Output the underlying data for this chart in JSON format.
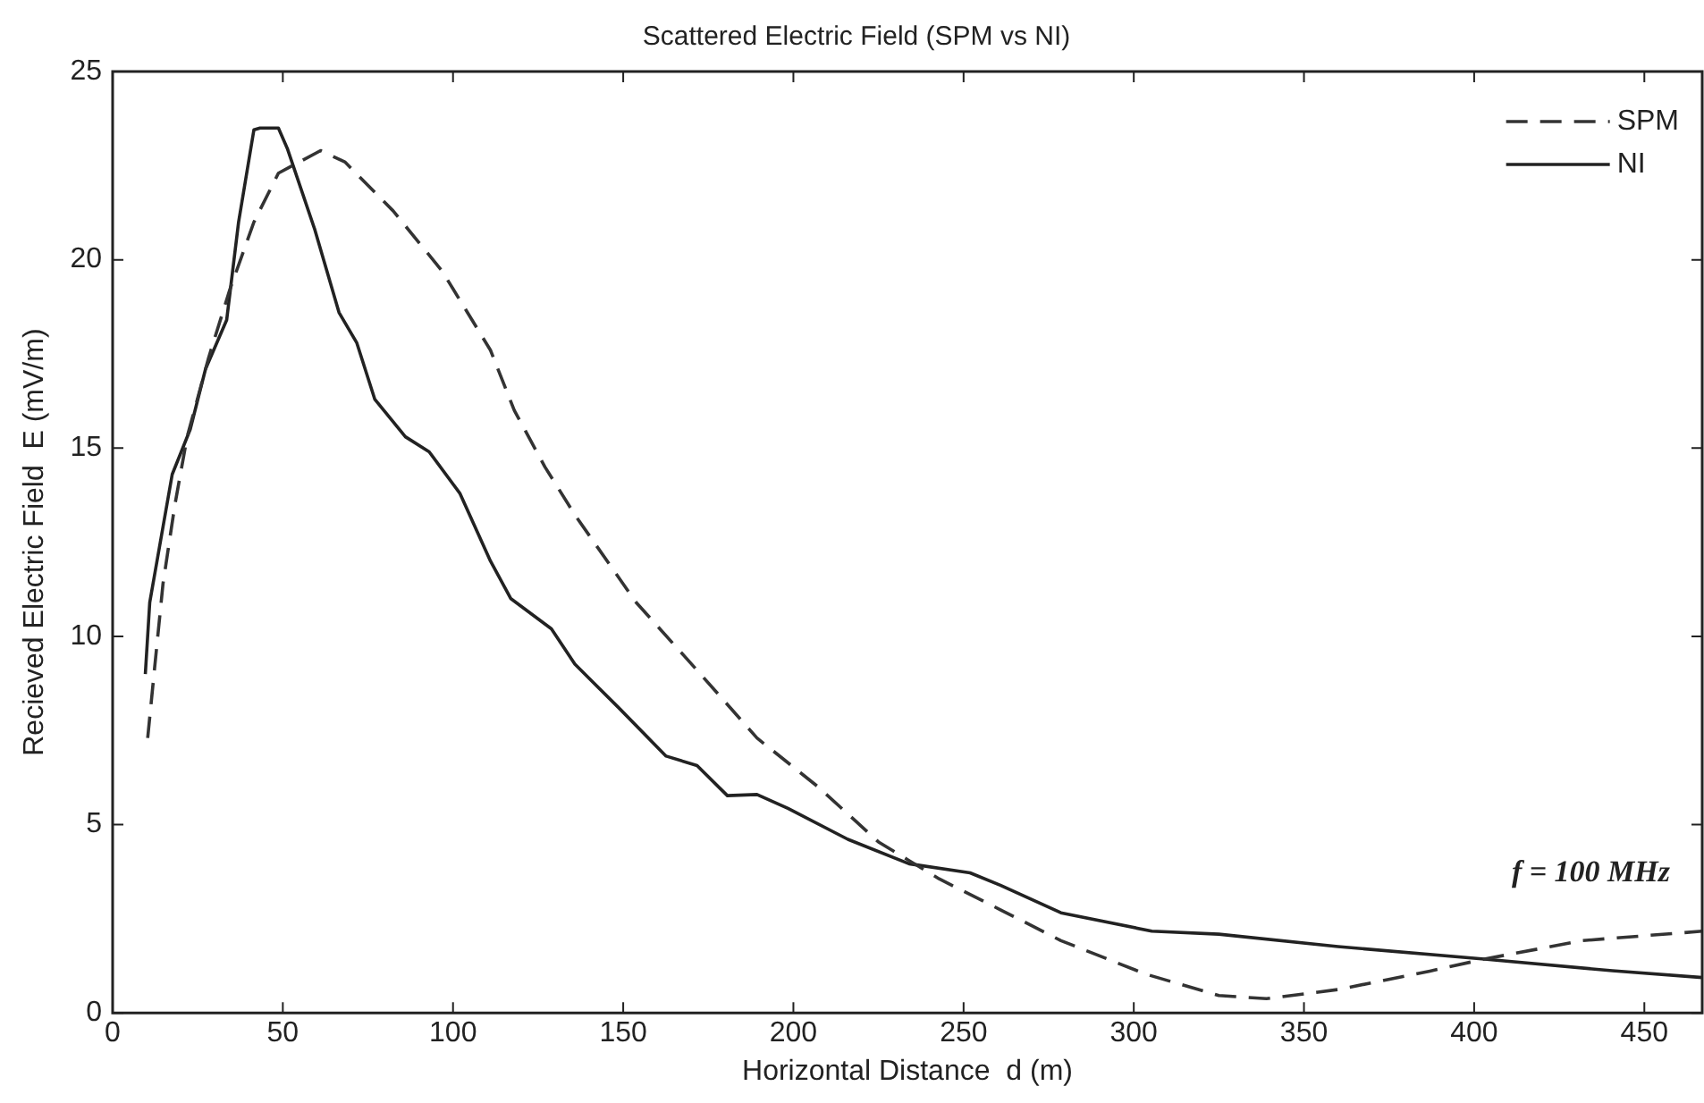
{
  "chart_data": {
    "type": "line",
    "title": "Scattered Electric Field (SPM vs NI)",
    "xlabel": "Horizontal Distance  d (m)",
    "ylabel": "Recieved Electric Field  E (mV/m)",
    "annotations": [
      "f = 100 MHz"
    ],
    "xlim": [
      0,
      467
    ],
    "xticks": [
      0,
      50,
      100,
      150,
      200,
      250,
      300,
      350,
      400,
      450
    ],
    "ylim": [
      0,
      25
    ],
    "yticks": [
      0,
      5,
      10,
      15,
      20,
      25
    ],
    "grid": false,
    "legend": "top right",
    "series": [
      {
        "name": "SPM",
        "color": "#333333",
        "line_style": "dashed",
        "x": [
          10.3,
          12.1,
          14.8,
          18.3,
          21.9,
          28.2,
          34.4,
          41.5,
          48.7,
          61.1,
          68.2,
          82.4,
          96.8,
          111,
          118,
          127,
          136,
          153.8,
          171.7,
          189.3,
          207.3,
          225,
          242.8,
          260.8,
          278.6,
          303.5,
          325,
          339,
          360,
          387,
          403,
          431.9,
          467
        ],
        "values": [
          7.3,
          8.95,
          11.4,
          13.5,
          15.3,
          17.4,
          19.2,
          21.0,
          22.3,
          22.9,
          22.6,
          21.3,
          19.7,
          17.6,
          16.0,
          14.5,
          13.2,
          10.9,
          9.1,
          7.3,
          6.0,
          4.54,
          3.56,
          2.74,
          1.92,
          1.03,
          0.46,
          0.38,
          0.62,
          1.11,
          1.43,
          1.92,
          2.17
        ]
      },
      {
        "name": "NI",
        "color": "#222222",
        "line_style": "solid",
        "x": [
          9.6,
          10.9,
          17.5,
          22.8,
          27.3,
          33.5,
          37,
          41.5,
          43.3,
          48.7,
          51.3,
          59.4,
          66.5,
          71.7,
          77,
          86,
          93,
          102,
          111,
          117,
          128.9,
          135.8,
          148.5,
          162.6,
          171.7,
          180.6,
          189.3,
          198.4,
          216,
          234,
          251.9,
          260.8,
          278.6,
          305.3,
          325,
          360,
          403,
          440.6,
          467
        ],
        "values": [
          9.0,
          10.9,
          14.3,
          15.5,
          17.1,
          18.4,
          21.0,
          23.45,
          23.5,
          23.5,
          22.96,
          20.8,
          18.6,
          17.8,
          16.3,
          15.3,
          14.9,
          13.8,
          12.0,
          11.0,
          10.2,
          9.26,
          8.12,
          6.82,
          6.57,
          5.77,
          5.8,
          5.43,
          4.61,
          3.96,
          3.72,
          3.39,
          2.66,
          2.17,
          2.09,
          1.76,
          1.43,
          1.12,
          0.94
        ]
      }
    ]
  }
}
